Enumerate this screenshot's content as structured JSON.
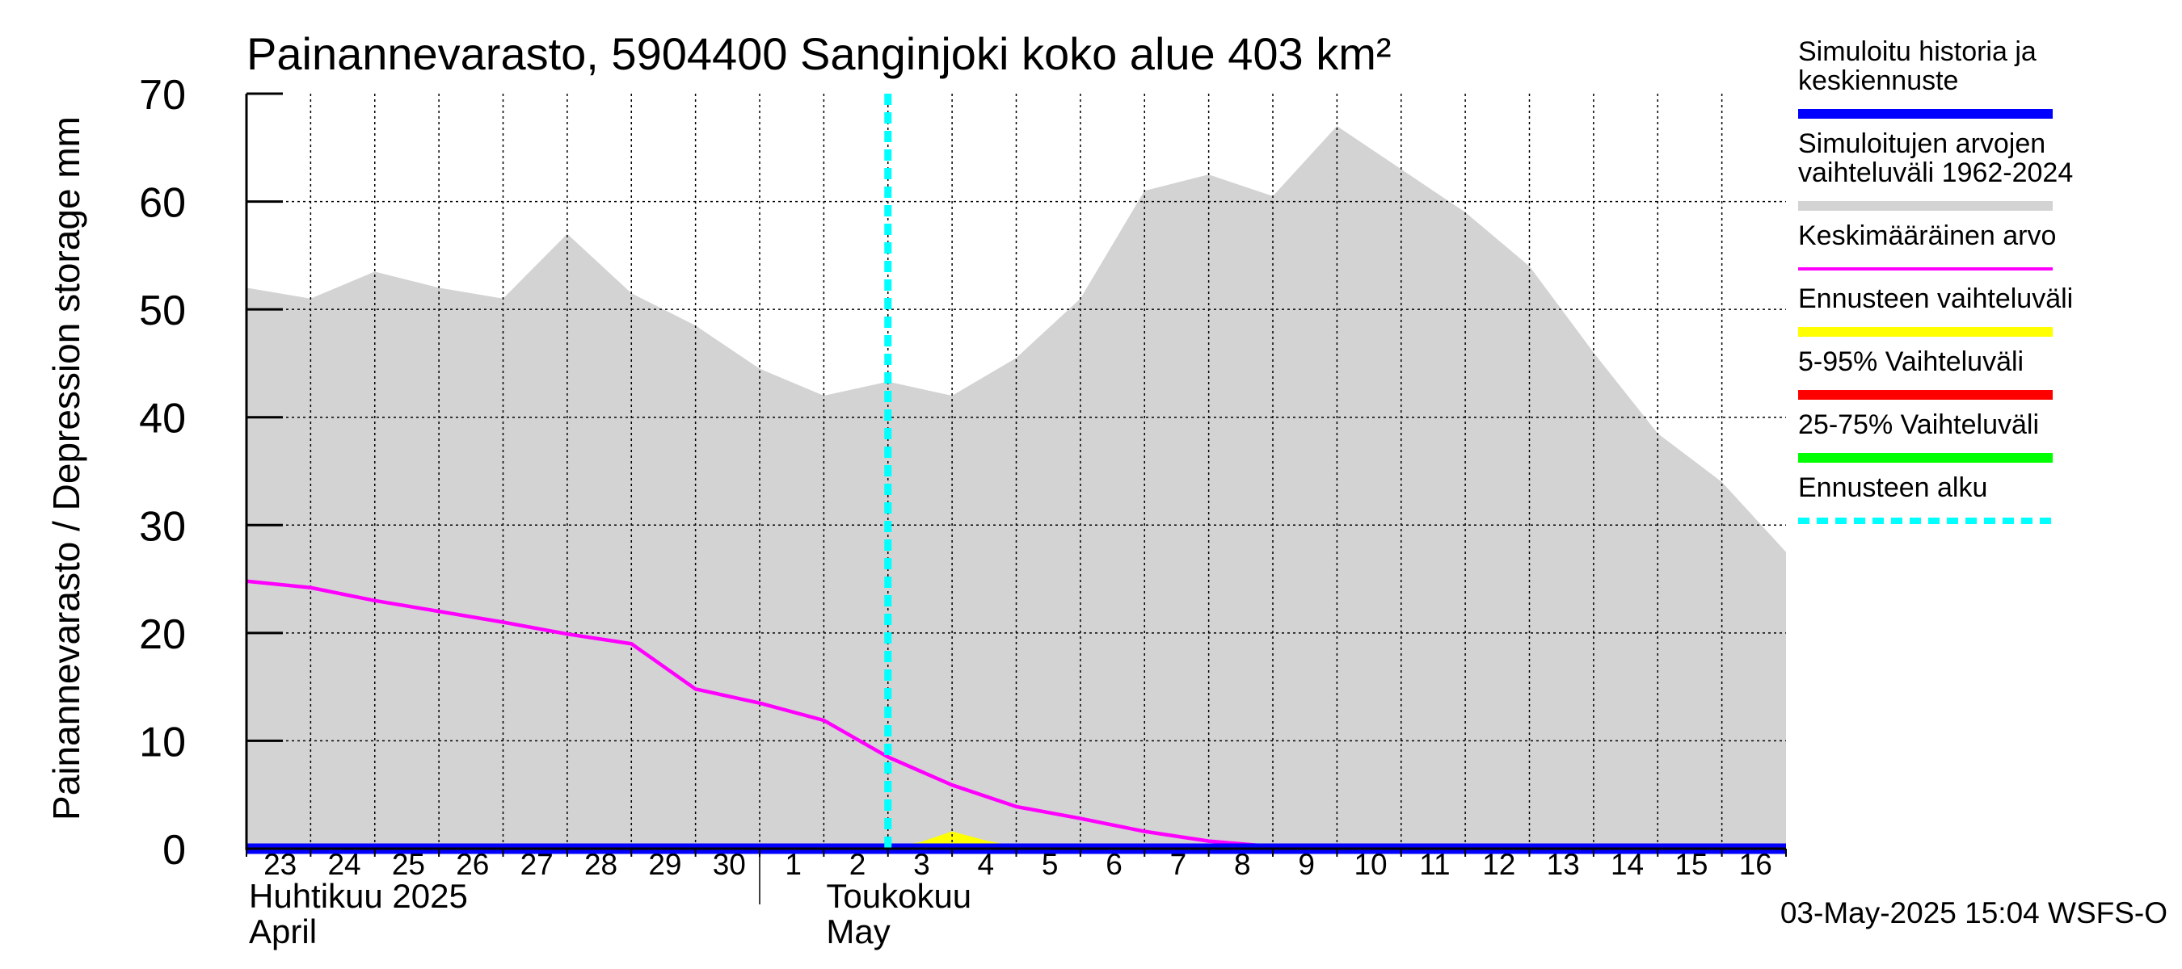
{
  "chart_data": {
    "type": "area",
    "title": "Painannevarasto, 5904400 Sanginjoki koko alue 403 km²",
    "ylabel": "Painannevarasto / Depression storage    mm",
    "ylim": [
      0,
      70
    ],
    "yticks": [
      "0",
      "10",
      "20",
      "30",
      "40",
      "50",
      "60",
      "70"
    ],
    "xlim": [
      0,
      24
    ],
    "day_labels": [
      "23",
      "24",
      "25",
      "26",
      "27",
      "28",
      "29",
      "30",
      "1",
      "2",
      "3",
      "4",
      "5",
      "6",
      "7",
      "8",
      "9",
      "10",
      "11",
      "12",
      "13",
      "14",
      "15",
      "16"
    ],
    "month_labels": [
      {
        "line1": "Huhtikuu  2025",
        "line2": "April",
        "x": 0
      },
      {
        "line1": "Toukokuu",
        "line2": "May",
        "x": 9
      }
    ],
    "month_boundary_x": 8,
    "grid": true,
    "forecast_start_x": 10,
    "x": [
      0,
      1,
      2,
      3,
      4,
      5,
      6,
      7,
      8,
      9,
      10,
      11,
      12,
      13,
      14,
      15,
      16,
      17,
      18,
      19,
      20,
      21,
      22,
      23,
      24
    ],
    "series": [
      {
        "name": "Simuloitujen arvojen vaihteluväli 1962-2024",
        "kind": "range",
        "color": "#d3d3d3",
        "upper": [
          52.0,
          51.0,
          53.5,
          52.0,
          51.0,
          57.0,
          51.5,
          48.5,
          44.5,
          42.0,
          43.3,
          42.0,
          45.5,
          51.0,
          61.0,
          62.5,
          60.5,
          67.0,
          63.0,
          59.0,
          54.0,
          46.0,
          38.5,
          34.0,
          27.5
        ],
        "lower": [
          0,
          0,
          0,
          0,
          0,
          0,
          0,
          0,
          0,
          0,
          0,
          0,
          0,
          0,
          0,
          0,
          0,
          0,
          0,
          0,
          0,
          0,
          0,
          0,
          0
        ]
      },
      {
        "name": "Keskimääräinen arvo",
        "kind": "line",
        "color": "#ff00ff",
        "values": [
          24.8,
          24.2,
          23.0,
          22.0,
          21.0,
          19.9,
          19.0,
          14.8,
          13.5,
          11.9,
          8.5,
          5.9,
          3.9,
          2.8,
          1.6,
          0.7,
          0.2,
          -0.2,
          -0.3,
          -0.3,
          -0.3,
          -0.3,
          -0.3,
          -0.3,
          -0.3
        ]
      },
      {
        "name": "Ennusteen vaihteluväli",
        "kind": "range",
        "color": "#ffff00",
        "x": [
          10,
          10.5,
          11,
          11.5,
          12
        ],
        "upper": [
          0.2,
          0.6,
          1.6,
          0.8,
          0.2
        ],
        "lower": [
          0,
          0,
          0,
          0,
          0
        ]
      },
      {
        "name": "Simuloitu historia ja keskiennuste",
        "kind": "line",
        "color": "#0000ff",
        "values": [
          0,
          0,
          0,
          0,
          0,
          0,
          0,
          0,
          0,
          0,
          0,
          0,
          0,
          0,
          0,
          0,
          0,
          0,
          0,
          0,
          0,
          0,
          0,
          0,
          0
        ]
      }
    ],
    "legend": {
      "placement": "right",
      "entries": [
        {
          "text": [
            "Simuloitu historia ja",
            "keskiennuste"
          ],
          "color": "#0000ff",
          "style": "solid"
        },
        {
          "text": [
            "Simuloitujen arvojen",
            "vaihteluväli 1962-2024"
          ],
          "color": "#d3d3d3",
          "style": "solid"
        },
        {
          "text": [
            "Keskimääräinen arvo"
          ],
          "color": "#ff00ff",
          "style": "thin"
        },
        {
          "text": [
            "Ennusteen vaihteluväli"
          ],
          "color": "#ffff00",
          "style": "solid"
        },
        {
          "text": [
            "5-95% Vaihteluväli"
          ],
          "color": "#ff0000",
          "style": "solid"
        },
        {
          "text": [
            "25-75% Vaihteluväli"
          ],
          "color": "#00ff00",
          "style": "solid"
        },
        {
          "text": [
            "Ennusteen alku"
          ],
          "color": "#00ffff",
          "style": "dashed"
        }
      ]
    },
    "footer": "03-May-2025 15:04 WSFS-O"
  }
}
